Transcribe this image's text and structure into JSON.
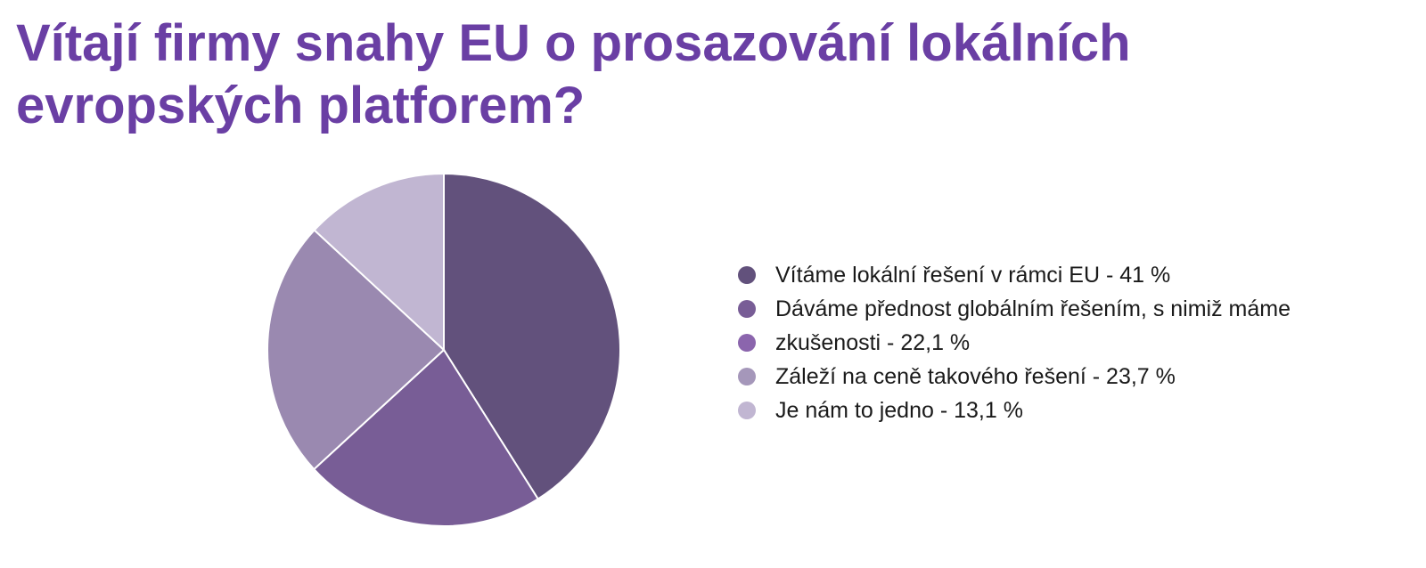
{
  "title_lines": [
    "Vítají firmy snahy EU o prosazování lokálních",
    "evropských platforem?"
  ],
  "legend_lines": [
    "Vítáme lokální řešení v rámci EU - 41 %",
    "Dáváme přednost globálním řešením, s nimiž máme",
    "zkušenosti - 22,1 %",
    "Záleží na ceně takového řešení - 23,7 %",
    "Je nám to jedno - 13,1 %"
  ],
  "legend_swatch_colors": [
    "#62517c",
    "#785d96",
    "#8b65ad",
    "#a597ba",
    "#c1b6d2"
  ],
  "chart_data": {
    "type": "pie",
    "title": "Vítají firmy snahy EU o prosazování lokálních evropských platforem?",
    "start_angle": "12 o'clock",
    "direction": "clockwise",
    "legend_position": "right",
    "slices": [
      {
        "label": "Vítáme lokální řešení v rámci EU",
        "value": 41,
        "color": "#62517c"
      },
      {
        "label": "Dáváme přednost globálním řešením, s nimiž máme zkušenosti",
        "value": 22.1,
        "color": "#785d96"
      },
      {
        "label": "Záleží na ceně takového řešení",
        "value": 23.7,
        "color": "#9a89b0"
      },
      {
        "label": "Je nám to jedno",
        "value": 13.1,
        "color": "#c1b6d2"
      }
    ]
  }
}
